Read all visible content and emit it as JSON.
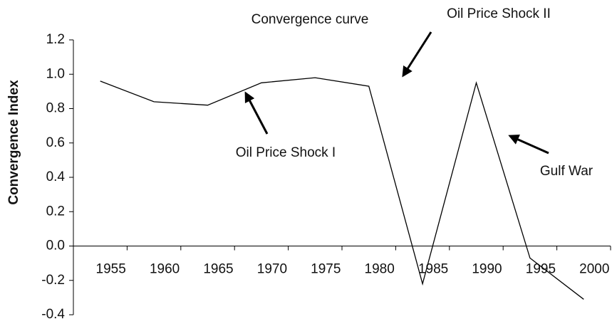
{
  "chart_data": {
    "type": "line",
    "title": "Convergence curve",
    "y_label": "Convergence Index",
    "categories": [
      "1955",
      "1960",
      "1965",
      "1970",
      "1975",
      "1980",
      "1985",
      "1990",
      "1995",
      "2000"
    ],
    "series": [
      {
        "name": "Convergence Index",
        "color": "#000000",
        "values": [
          0.96,
          0.84,
          0.82,
          0.95,
          0.98,
          0.93,
          -0.22,
          0.95,
          -0.07,
          -0.31
        ]
      }
    ],
    "ylim": [
      -0.4,
      1.2
    ],
    "yticks": [
      -0.4,
      -0.2,
      {
        "value": 0,
        "label": "0.0"
      },
      0.2,
      0.4,
      0.6,
      0.8,
      {
        "value": 1,
        "label": "1.0"
      },
      1.2
    ],
    "annotations": [
      "Oil Price Shock II",
      "Oil Price Shock I",
      "Gulf War"
    ],
    "grid": false
  }
}
